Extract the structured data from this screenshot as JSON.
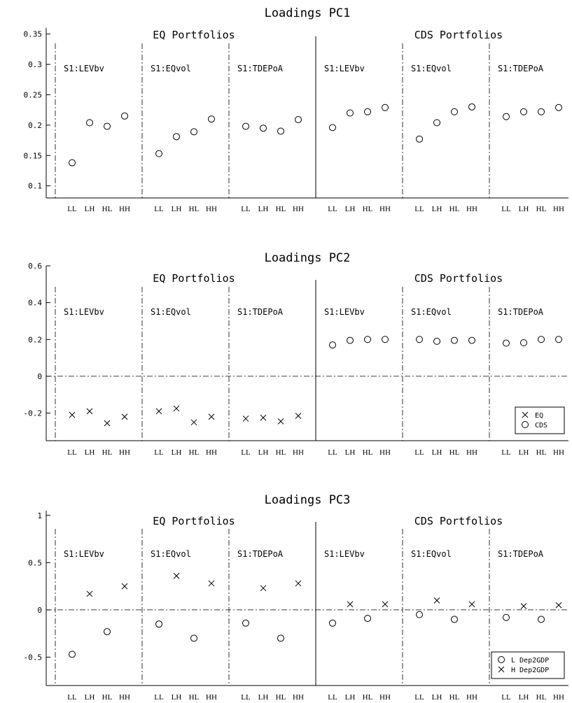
{
  "chart_data": [
    {
      "type": "scatter",
      "title": "Loadings PC1",
      "ylim": [
        0.08,
        0.36
      ],
      "yticks": [
        0.1,
        0.15,
        0.2,
        0.25,
        0.3,
        0.35
      ],
      "ytick_labels": [
        "0.1",
        "0.15",
        "0.2",
        "0.25",
        "0.3",
        "0.35"
      ],
      "groups": [
        "EQ Portfolios",
        "CDS Portfolios"
      ],
      "panels": [
        "S1:LEVbv",
        "S1:EQvol",
        "S1:TDEPoA",
        "S1:LEVbv",
        "S1:EQvol",
        "S1:TDEPoA"
      ],
      "categories": [
        "LL",
        "LH",
        "HL",
        "HH"
      ],
      "zero_line": false,
      "legend": null,
      "series": [
        {
          "marker": "circle",
          "values": [
            0.138,
            0.204,
            0.198,
            0.215,
            0.153,
            0.181,
            0.189,
            0.21,
            0.198,
            0.195,
            0.19,
            0.209,
            0.196,
            0.22,
            0.222,
            0.229,
            0.177,
            0.204,
            0.222,
            0.23,
            0.214,
            0.222,
            0.222,
            0.229
          ]
        }
      ]
    },
    {
      "type": "scatter",
      "title": "Loadings PC2",
      "ylim": [
        -0.35,
        0.6
      ],
      "yticks": [
        -0.2,
        0,
        0.2,
        0.4,
        0.6
      ],
      "ytick_labels": [
        "-0.2",
        "0",
        "0.2",
        "0.4",
        "0.6"
      ],
      "groups": [
        "EQ Portfolios",
        "CDS Portfolios"
      ],
      "panels": [
        "S1:LEVbv",
        "S1:EQvol",
        "S1:TDEPoA",
        "S1:LEVbv",
        "S1:EQvol",
        "S1:TDEPoA"
      ],
      "categories": [
        "LL",
        "LH",
        "HL",
        "HH"
      ],
      "zero_line": true,
      "legend": {
        "position": "bottom-right",
        "entries": [
          {
            "label": "EQ",
            "marker": "x"
          },
          {
            "label": "CDS",
            "marker": "circle"
          }
        ]
      },
      "series": [
        {
          "name": "EQ",
          "marker": "x",
          "values": [
            -0.21,
            -0.19,
            -0.255,
            -0.22,
            -0.19,
            -0.175,
            -0.25,
            -0.22,
            -0.23,
            -0.225,
            -0.245,
            -0.215,
            null,
            null,
            null,
            null,
            null,
            null,
            null,
            null,
            null,
            null,
            null,
            null
          ]
        },
        {
          "name": "CDS",
          "marker": "circle",
          "values": [
            null,
            null,
            null,
            null,
            null,
            null,
            null,
            null,
            null,
            null,
            null,
            null,
            0.17,
            0.195,
            0.2,
            0.2,
            0.2,
            0.19,
            0.195,
            0.195,
            0.18,
            0.182,
            0.2,
            0.2
          ]
        }
      ]
    },
    {
      "type": "scatter",
      "title": "Loadings PC3",
      "ylim": [
        -0.8,
        1.05
      ],
      "yticks": [
        -0.5,
        0,
        0.5,
        1
      ],
      "ytick_labels": [
        "-0.5",
        "0",
        "0.5",
        "1"
      ],
      "groups": [
        "EQ Portfolios",
        "CDS Portfolios"
      ],
      "panels": [
        "S1:LEVbv",
        "S1:EQvol",
        "S1:TDEPoA",
        "S1:LEVbv",
        "S1:EQvol",
        "S1:TDEPoA"
      ],
      "categories": [
        "LL",
        "LH",
        "HL",
        "HH"
      ],
      "zero_line": true,
      "legend": {
        "position": "bottom-right",
        "entries": [
          {
            "label": "L Dep2GDP",
            "marker": "circle"
          },
          {
            "label": "H Dep2GDP",
            "marker": "x"
          }
        ]
      },
      "series": [
        {
          "name": "L Dep2GDP",
          "marker": "circle",
          "values": [
            -0.47,
            null,
            -0.23,
            null,
            -0.15,
            null,
            -0.3,
            null,
            -0.14,
            null,
            -0.3,
            null,
            -0.14,
            null,
            -0.09,
            null,
            -0.05,
            null,
            -0.1,
            null,
            -0.08,
            null,
            -0.1,
            null
          ]
        },
        {
          "name": "H Dep2GDP",
          "marker": "x",
          "values": [
            null,
            0.17,
            null,
            0.25,
            null,
            0.36,
            null,
            0.28,
            null,
            0.23,
            null,
            0.28,
            null,
            0.06,
            null,
            0.06,
            null,
            0.1,
            null,
            0.06,
            null,
            0.04,
            null,
            0.05
          ]
        }
      ]
    }
  ]
}
